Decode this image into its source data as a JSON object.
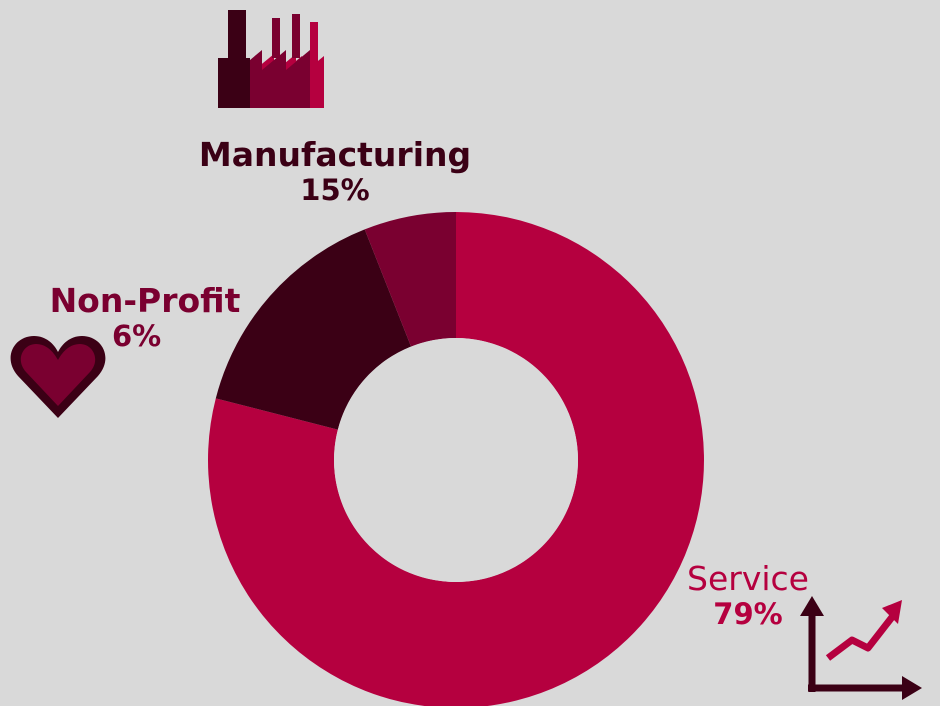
{
  "chart_data": {
    "type": "pie",
    "variant": "donut",
    "slices": [
      {
        "label": "Service",
        "value": 79,
        "display": "79%",
        "color": "#b5003f"
      },
      {
        "label": "Manufacturing",
        "value": 15,
        "display": "15%",
        "color": "#3b0015"
      },
      {
        "label": "Non-Profit",
        "value": 6,
        "display": "6%",
        "color": "#7a0030"
      }
    ],
    "start": "12 o'clock",
    "direction": "clockwise",
    "legend": "none (inline labels)"
  },
  "labels": {
    "manufacturing": {
      "name": "Manufacturing",
      "pct": "15%"
    },
    "nonprofit": {
      "name": "Non-Profit",
      "pct": "6%"
    },
    "service": {
      "name": "Service",
      "pct": "79%"
    }
  },
  "icons": {
    "manufacturing": "factory-icon",
    "nonprofit": "heart-icon",
    "service": "growth-chart-icon"
  },
  "colors": {
    "background": "#d9d9d9",
    "dark": "#3b0015",
    "mid": "#7a0030",
    "bright": "#b5003f"
  }
}
